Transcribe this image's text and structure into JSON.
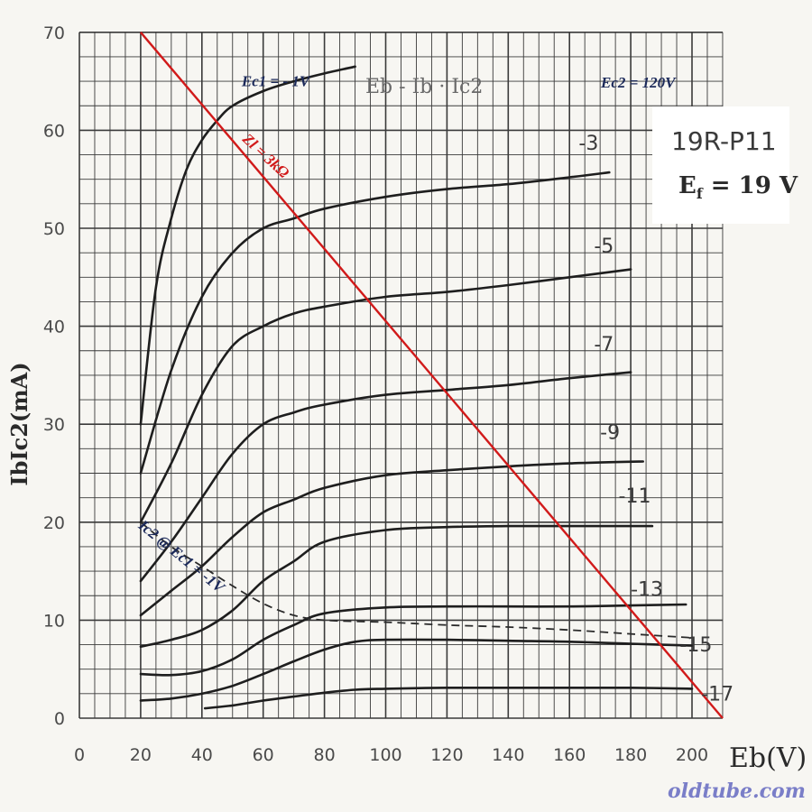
{
  "chart_data": {
    "type": "line",
    "title": "Eb - Ib · Ic2",
    "tube_type": "19R-P11",
    "filament_label_a": "E",
    "filament_label_sub": "f",
    "filament_label_b": " = 19 V",
    "screen_voltage_label": "Ec2 = 120V",
    "ylabel": "IbIc2(mA)",
    "xlabel": "Eb(V)",
    "xlim": [
      0,
      210
    ],
    "ylim": [
      0,
      70
    ],
    "x_ticks": [
      0,
      20,
      40,
      60,
      80,
      100,
      120,
      140,
      160,
      180,
      200
    ],
    "y_ticks": [
      0,
      10,
      20,
      30,
      40,
      50,
      60,
      70
    ],
    "grid": true,
    "series": [
      {
        "name": "Ec1 = - 1V",
        "label": "Ec1 = - 1V",
        "x": [
          20,
          25,
          30,
          35,
          40,
          45,
          50,
          60,
          70,
          80,
          90
        ],
        "y": [
          30,
          44,
          51,
          56,
          59,
          61,
          62.5,
          64,
          65,
          65.8,
          66.5
        ]
      },
      {
        "name": "-3",
        "label": "-3",
        "x": [
          20,
          30,
          40,
          50,
          60,
          70,
          80,
          100,
          120,
          140,
          160,
          173
        ],
        "y": [
          25,
          35.5,
          43,
          47.5,
          50,
          51,
          52,
          53.2,
          54,
          54.5,
          55.2,
          55.7
        ]
      },
      {
        "name": "-5",
        "label": "-5",
        "x": [
          20,
          30,
          40,
          50,
          60,
          70,
          80,
          100,
          120,
          140,
          160,
          180
        ],
        "y": [
          20,
          26,
          33,
          38,
          40,
          41.3,
          42,
          43,
          43.5,
          44.2,
          45,
          45.8
        ]
      },
      {
        "name": "-7",
        "label": "-7",
        "x": [
          20,
          30,
          40,
          50,
          60,
          70,
          80,
          100,
          120,
          140,
          160,
          180
        ],
        "y": [
          14,
          18,
          22.5,
          27,
          30,
          31.2,
          32,
          33,
          33.5,
          34,
          34.7,
          35.3
        ]
      },
      {
        "name": "-9",
        "label": "-9",
        "x": [
          20,
          30,
          40,
          50,
          60,
          70,
          80,
          100,
          120,
          140,
          160,
          184
        ],
        "y": [
          10.5,
          13,
          15.5,
          18.5,
          21,
          22.3,
          23.5,
          24.8,
          25.3,
          25.7,
          26,
          26.2
        ]
      },
      {
        "name": "-11",
        "label": "-11",
        "x": [
          20,
          30,
          40,
          50,
          60,
          70,
          80,
          100,
          120,
          140,
          160,
          187
        ],
        "y": [
          7.3,
          8,
          9,
          11,
          14,
          16,
          18,
          19.2,
          19.5,
          19.6,
          19.6,
          19.6
        ]
      },
      {
        "name": "-13",
        "label": "-13",
        "x": [
          20,
          30,
          40,
          50,
          60,
          70,
          80,
          100,
          120,
          140,
          160,
          180,
          198
        ],
        "y": [
          4.5,
          4.4,
          4.8,
          6,
          8,
          9.5,
          10.7,
          11.3,
          11.4,
          11.4,
          11.4,
          11.5,
          11.6
        ]
      },
      {
        "name": "-15",
        "label": "-15",
        "x": [
          20,
          30,
          40,
          50,
          60,
          70,
          80,
          90,
          100,
          120,
          140,
          160,
          180,
          200
        ],
        "y": [
          1.8,
          2,
          2.5,
          3.3,
          4.5,
          5.8,
          7,
          7.8,
          8,
          8,
          7.9,
          7.8,
          7.6,
          7.4
        ]
      },
      {
        "name": "-17",
        "label": "-17",
        "x": [
          41,
          50,
          60,
          70,
          80,
          90,
          100,
          120,
          140,
          160,
          180,
          200
        ],
        "y": [
          1,
          1.3,
          1.8,
          2.2,
          2.6,
          2.9,
          3,
          3.1,
          3.1,
          3.1,
          3.1,
          3.0
        ]
      }
    ],
    "screen_current": {
      "label": "Ic2 @ Ec1 = -1V",
      "x": [
        20,
        30,
        40,
        50,
        60,
        70,
        80,
        100,
        120,
        140,
        160,
        180,
        200
      ],
      "y": [
        20,
        17.5,
        15.5,
        13.5,
        11.7,
        10.5,
        10,
        9.8,
        9.5,
        9.3,
        9.0,
        8.6,
        8.2
      ]
    },
    "load_line": {
      "label": "Zl = 3kΩ",
      "x": [
        20,
        210
      ],
      "y": [
        70,
        0
      ]
    }
  },
  "watermark": "oldtube.com"
}
